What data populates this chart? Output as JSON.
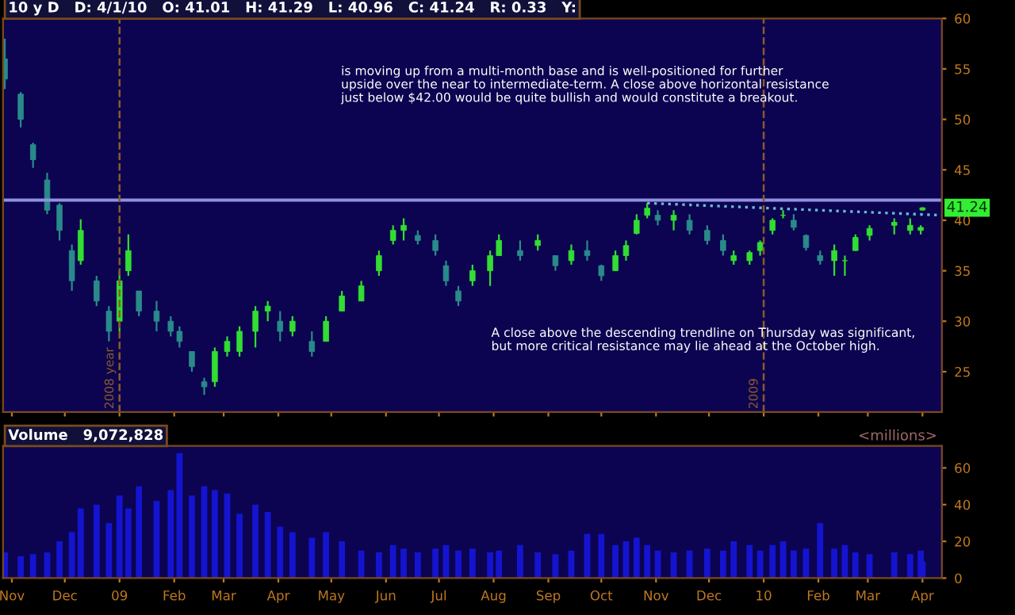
{
  "chart_data": [
    {
      "type": "candlestick",
      "title": "10 y D   D: 4/1/10   O: 41.01   H: 41.29   L: 40.96   C: 41.24   R: 0.33   Y:",
      "x": [
        "2008-10-28",
        "2008-11-06",
        "2008-11-13",
        "2008-11-21",
        "2008-11-28",
        "2008-12-05",
        "2008-12-10",
        "2008-12-19",
        "2008-12-26",
        "2009-01-01",
        "2009-01-06",
        "2009-01-12",
        "2009-01-22",
        "2009-01-30",
        "2009-02-04",
        "2009-02-11",
        "2009-02-18",
        "2009-02-24",
        "2009-03-03",
        "2009-03-10",
        "2009-03-19",
        "2009-03-26",
        "2009-04-02",
        "2009-04-09",
        "2009-04-20",
        "2009-04-28",
        "2009-05-07",
        "2009-05-18",
        "2009-05-28",
        "2009-06-05",
        "2009-06-11",
        "2009-06-19",
        "2009-06-29",
        "2009-07-05",
        "2009-07-12",
        "2009-07-20",
        "2009-07-30",
        "2009-08-04",
        "2009-08-16",
        "2009-08-26",
        "2009-09-05",
        "2009-09-14",
        "2009-09-23",
        "2009-10-01",
        "2009-10-09",
        "2009-10-15",
        "2009-10-21",
        "2009-10-27",
        "2009-11-02",
        "2009-11-11",
        "2009-11-20",
        "2009-11-30",
        "2009-12-09",
        "2009-12-15",
        "2009-12-24",
        "2009-12-30",
        "2010-01-06",
        "2010-01-12",
        "2010-01-18",
        "2010-01-25",
        "2010-02-02",
        "2010-02-10",
        "2010-02-16",
        "2010-02-22",
        "2010-03-02",
        "2010-03-16",
        "2010-03-25",
        "2010-03-31",
        "2010-04-01"
      ],
      "ohlc": [
        [
          56,
          58,
          53,
          54
        ],
        [
          52.5,
          52.7,
          49.2,
          50
        ],
        [
          47.5,
          47.7,
          45.2,
          46
        ],
        [
          44,
          44.7,
          40.6,
          41
        ],
        [
          41.5,
          41.7,
          38,
          39
        ],
        [
          37,
          37.6,
          33,
          34
        ],
        [
          36,
          40.1,
          35.6,
          39
        ],
        [
          34,
          34.5,
          31.5,
          32
        ],
        [
          31,
          31.5,
          28,
          29
        ],
        [
          30,
          35,
          29,
          34
        ],
        [
          35,
          38.6,
          34.5,
          37
        ],
        [
          33,
          33,
          30.5,
          31
        ],
        [
          31,
          32,
          29,
          30
        ],
        [
          30,
          30.5,
          28.5,
          29
        ],
        [
          29,
          29.5,
          27.4,
          28
        ],
        [
          27,
          27,
          25,
          25.5
        ],
        [
          24,
          24.4,
          22.7,
          23.5
        ],
        [
          24,
          27.4,
          23.5,
          27
        ],
        [
          27,
          28.5,
          26.5,
          28
        ],
        [
          27,
          29.5,
          26.5,
          29
        ],
        [
          29,
          31.5,
          27.4,
          31
        ],
        [
          31,
          32,
          30,
          31.5
        ],
        [
          30,
          31,
          28,
          29
        ],
        [
          29,
          30.5,
          28.5,
          30
        ],
        [
          28,
          29,
          26.5,
          27
        ],
        [
          28,
          30.5,
          28,
          30
        ],
        [
          31,
          33,
          31,
          32.5
        ],
        [
          32,
          34,
          32,
          33.5
        ],
        [
          35,
          37,
          34.5,
          36.5
        ],
        [
          38,
          39.5,
          37.6,
          39
        ],
        [
          39,
          40.2,
          38,
          39.5
        ],
        [
          38.5,
          39,
          37.6,
          38
        ],
        [
          38,
          38.6,
          36.5,
          37
        ],
        [
          35.5,
          36,
          33.5,
          34
        ],
        [
          33,
          33.5,
          31.5,
          32
        ],
        [
          34,
          35.6,
          33.5,
          35
        ],
        [
          35,
          37,
          33.5,
          36.5
        ],
        [
          36.5,
          38.6,
          36.5,
          38
        ],
        [
          37,
          38,
          36,
          36.5
        ],
        [
          37.5,
          38.6,
          37,
          38
        ],
        [
          36.5,
          36.5,
          35,
          35.5
        ],
        [
          36,
          37.6,
          35.6,
          37
        ],
        [
          37,
          38,
          36,
          36.5
        ],
        [
          35.5,
          35.6,
          34,
          34.5
        ],
        [
          35,
          37,
          35,
          36.5
        ],
        [
          36.5,
          38,
          36,
          37.5
        ],
        [
          38.7,
          40.6,
          38.6,
          40
        ],
        [
          40.5,
          41.7,
          40.2,
          41.2
        ],
        [
          40.5,
          41,
          39.5,
          40
        ],
        [
          40,
          41,
          39,
          40.5
        ],
        [
          40,
          40.6,
          38.6,
          39
        ],
        [
          39,
          39.5,
          37.6,
          38
        ],
        [
          38,
          38.6,
          36.5,
          37
        ],
        [
          36,
          37,
          35.6,
          36.5
        ],
        [
          36,
          37,
          35.6,
          36.8
        ],
        [
          37,
          38,
          36.5,
          37.8
        ],
        [
          39,
          40.2,
          38.6,
          40
        ],
        [
          40.5,
          41,
          40.2,
          40.5
        ],
        [
          40,
          40.6,
          39,
          39.3
        ],
        [
          38.5,
          38.6,
          37,
          37.3
        ],
        [
          36.5,
          37,
          35.6,
          36
        ],
        [
          36,
          37.6,
          34.5,
          37
        ],
        [
          36,
          36.5,
          34.5,
          36
        ],
        [
          37,
          38.6,
          37,
          38.3
        ],
        [
          38.5,
          39.5,
          38,
          39.2
        ],
        [
          39.5,
          40.2,
          38.6,
          39.8
        ],
        [
          39,
          40.2,
          38.6,
          39.5
        ],
        [
          39,
          39.5,
          38.6,
          39.3
        ],
        [
          41.01,
          41.29,
          40.96,
          41.24
        ]
      ],
      "colors": [
        "#2a8a8a",
        "#2a8a8a",
        "#2a8a8a",
        "#2a8a8a",
        "#2a8a8a",
        "#2a8a8a",
        "#33dd33",
        "#2a8a8a",
        "#2a8a8a",
        "#33dd33",
        "#33dd33",
        "#2a8a8a",
        "#2a8a8a",
        "#2a8a8a",
        "#2a8a8a",
        "#2a8a8a",
        "#2a8a8a",
        "#33dd33",
        "#33dd33",
        "#33dd33",
        "#33dd33",
        "#33dd33",
        "#2a8a8a",
        "#33dd33",
        "#2a8a8a",
        "#33dd33",
        "#33dd33",
        "#33dd33",
        "#33dd33",
        "#33dd33",
        "#33dd33",
        "#2a8a8a",
        "#2a8a8a",
        "#2a8a8a",
        "#2a8a8a",
        "#33dd33",
        "#33dd33",
        "#33dd33",
        "#2a8a8a",
        "#33dd33",
        "#2a8a8a",
        "#33dd33",
        "#2a8a8a",
        "#2a8a8a",
        "#33dd33",
        "#33dd33",
        "#33dd33",
        "#33dd33",
        "#2a8a8a",
        "#33dd33",
        "#2a8a8a",
        "#2a8a8a",
        "#2a8a8a",
        "#33dd33",
        "#33dd33",
        "#33dd33",
        "#33dd33",
        "#33dd33",
        "#2a8a8a",
        "#2a8a8a",
        "#2a8a8a",
        "#33dd33",
        "#33dd33",
        "#33dd33",
        "#33dd33",
        "#33dd33",
        "#33dd33",
        "#33dd33",
        "#33dd33"
      ],
      "series": [
        {
          "type": "line",
          "x": [
            "2009-10-27",
            "2010-04-12"
          ],
          "values": [
            41.7,
            40.5
          ],
          "color": "#6ab8d8",
          "line_style": "dotted"
        }
      ],
      "xlim": [
        "2008-10-27",
        "2010-04-12"
      ],
      "xticks": [
        {
          "value": "2008-11-01",
          "label": null
        },
        {
          "value": "2008-12-01",
          "label": null
        },
        {
          "value": "2009-01-01",
          "label": null
        },
        {
          "value": "2009-02-01",
          "label": null
        },
        {
          "value": "2009-03-01",
          "label": null
        },
        {
          "value": "2009-04-01",
          "label": null
        },
        {
          "value": "2009-05-01",
          "label": null
        },
        {
          "value": "2009-06-01",
          "label": null
        },
        {
          "value": "2009-07-01",
          "label": null
        },
        {
          "value": "2009-08-01",
          "label": null
        },
        {
          "value": "2009-09-01",
          "label": null
        },
        {
          "value": "2009-10-01",
          "label": null
        },
        {
          "value": "2009-11-01",
          "label": null
        },
        {
          "value": "2009-12-01",
          "label": null
        },
        {
          "value": "2010-01-01",
          "label": null
        },
        {
          "value": "2010-02-01",
          "label": null
        },
        {
          "value": "2010-03-01",
          "label": null
        },
        {
          "value": "2010-04-01",
          "label": null
        }
      ],
      "ylim": [
        21,
        60
      ],
      "yticks": [
        25,
        30,
        35,
        40,
        45,
        50,
        55,
        60
      ],
      "tick_labels": "y",
      "grid": false,
      "legend": false,
      "ref_lines": [
        {
          "axis": "y",
          "value": 42,
          "color": "#9090e0",
          "line_style": "solid"
        },
        {
          "axis": "x",
          "value": "2009-01-01",
          "label": "2008 year",
          "color": "#8a5a2a",
          "line_style": "dashed"
        },
        {
          "axis": "x",
          "value": "2010-01-01",
          "label": "2009",
          "color": "#8a5a2a",
          "line_style": "dashed"
        }
      ],
      "annotations": [
        "is moving up from a multi-month base and is well-positioned for further\nupside over the near to intermediate-term. A close above horizontal resistance\njust below $42.00 would be quite bullish and would constitute a breakout.",
        "A close above the descending trendline on Thursday was significant,\nbut more critical resistance may lie ahead at the October high.",
        {
          "text": "41.24",
          "x": "2010-04-01",
          "y": 41.24
        }
      ]
    },
    {
      "type": "bar",
      "title": "Volume   9,072,828",
      "ylabel": "<millions>",
      "x": [
        "2008-10-28",
        "2008-11-06",
        "2008-11-13",
        "2008-11-21",
        "2008-11-28",
        "2008-12-05",
        "2008-12-10",
        "2008-12-19",
        "2008-12-26",
        "2009-01-01",
        "2009-01-06",
        "2009-01-12",
        "2009-01-22",
        "2009-01-30",
        "2009-02-04",
        "2009-02-11",
        "2009-02-18",
        "2009-02-24",
        "2009-03-03",
        "2009-03-10",
        "2009-03-19",
        "2009-03-26",
        "2009-04-02",
        "2009-04-09",
        "2009-04-20",
        "2009-04-28",
        "2009-05-07",
        "2009-05-18",
        "2009-05-28",
        "2009-06-05",
        "2009-06-11",
        "2009-06-19",
        "2009-06-29",
        "2009-07-05",
        "2009-07-12",
        "2009-07-20",
        "2009-07-30",
        "2009-08-04",
        "2009-08-16",
        "2009-08-26",
        "2009-09-05",
        "2009-09-14",
        "2009-09-23",
        "2009-10-01",
        "2009-10-09",
        "2009-10-15",
        "2009-10-21",
        "2009-10-27",
        "2009-11-02",
        "2009-11-11",
        "2009-11-20",
        "2009-11-30",
        "2009-12-09",
        "2009-12-15",
        "2009-12-24",
        "2009-12-30",
        "2010-01-06",
        "2010-01-12",
        "2010-01-18",
        "2010-01-25",
        "2010-02-02",
        "2010-02-10",
        "2010-02-16",
        "2010-02-22",
        "2010-03-02",
        "2010-03-16",
        "2010-03-25",
        "2010-03-31",
        "2010-04-01"
      ],
      "values": [
        14,
        12,
        13,
        14,
        20,
        25,
        38,
        40,
        30,
        45,
        38,
        50,
        42,
        48,
        68,
        45,
        50,
        48,
        46,
        35,
        40,
        36,
        28,
        25,
        22,
        25,
        20,
        15,
        14,
        18,
        16,
        14,
        16,
        18,
        15,
        16,
        14,
        15,
        18,
        14,
        13,
        15,
        24,
        24,
        18,
        20,
        22,
        18,
        15,
        14,
        15,
        16,
        15,
        20,
        18,
        15,
        18,
        20,
        15,
        16,
        30,
        16,
        18,
        14,
        13,
        14,
        13,
        15,
        9
      ],
      "color": "#1414d0",
      "xlim": [
        "2008-10-27",
        "2010-04-12"
      ],
      "xticks": [
        {
          "value": "2008-11-01",
          "label": "Nov"
        },
        {
          "value": "2008-12-01",
          "label": "Dec"
        },
        {
          "value": "2009-01-01",
          "label": "09"
        },
        {
          "value": "2009-02-01",
          "label": "Feb"
        },
        {
          "value": "2009-03-01",
          "label": "Mar"
        },
        {
          "value": "2009-04-01",
          "label": "Apr"
        },
        {
          "value": "2009-05-01",
          "label": "May"
        },
        {
          "value": "2009-06-01",
          "label": "Jun"
        },
        {
          "value": "2009-07-01",
          "label": "Jul"
        },
        {
          "value": "2009-08-01",
          "label": "Aug"
        },
        {
          "value": "2009-09-01",
          "label": "Sep"
        },
        {
          "value": "2009-10-01",
          "label": "Oct"
        },
        {
          "value": "2009-11-01",
          "label": "Nov"
        },
        {
          "value": "2009-12-01",
          "label": "Dec"
        },
        {
          "value": "2010-01-01",
          "label": "10"
        },
        {
          "value": "2010-02-01",
          "label": "Feb"
        },
        {
          "value": "2010-03-01",
          "label": "Mar"
        },
        {
          "value": "2010-04-01",
          "label": "Apr"
        }
      ],
      "ylim": [
        0,
        72
      ],
      "yticks": [
        0,
        20,
        40,
        60
      ],
      "grid": false,
      "legend": false
    }
  ]
}
